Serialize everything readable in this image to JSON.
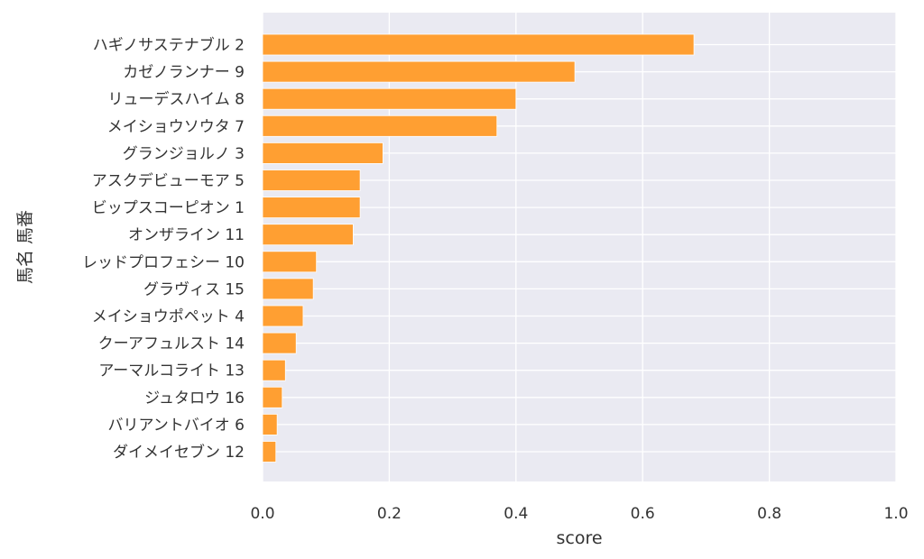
{
  "chart_data": {
    "type": "bar",
    "orientation": "horizontal",
    "xlabel": "score",
    "ylabel": "馬名 馬番",
    "xlim": [
      0,
      1
    ],
    "xticks": [
      "0.0",
      "0.2",
      "0.4",
      "0.6",
      "0.8",
      "1.0"
    ],
    "grid": true,
    "colors": {
      "bar": "#ff9f32",
      "bar_edge": "#ffffff",
      "plot_background": "#eaeaf2",
      "gridline": "#ffffff"
    },
    "categories": [
      "ハギノサステナブル 2",
      "カゼノランナー 9",
      "リューデスハイム 8",
      "メイショウソウタ 7",
      "グランジョルノ 3",
      "アスクデビューモア 5",
      "ビップスコーピオン 1",
      "オンザライン 11",
      "レッドプロフェシー 10",
      "グラヴィス 15",
      "メイショウポペット 4",
      "クーアフュルスト 14",
      "アーマルコライト 13",
      "ジュタロウ 16",
      "バリアントバイオ 6",
      "ダイメイセブン 12"
    ],
    "values": [
      0.681,
      0.493,
      0.4,
      0.37,
      0.19,
      0.154,
      0.154,
      0.143,
      0.085,
      0.08,
      0.064,
      0.053,
      0.036,
      0.031,
      0.023,
      0.021
    ]
  }
}
